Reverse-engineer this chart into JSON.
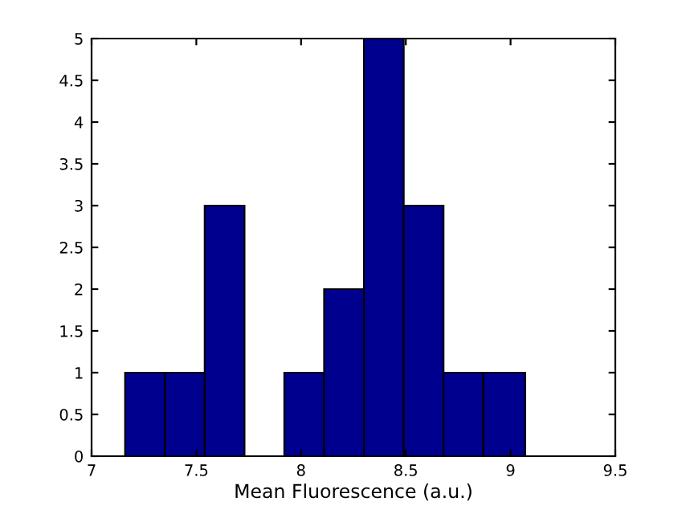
{
  "chart_data": {
    "type": "histogram",
    "xlabel": "Mean Fluorescence (a.u.)",
    "bins": [
      7.16,
      7.35,
      7.54,
      7.73,
      7.92,
      8.11,
      8.3,
      8.49,
      8.68,
      8.87,
      9.07
    ],
    "values": [
      1,
      1,
      3,
      0,
      1,
      2,
      5,
      3,
      1,
      1
    ],
    "color": "#00008f",
    "xlim": [
      7,
      9.5
    ],
    "xticks": [
      7,
      7.5,
      8,
      8.5,
      9,
      9.5
    ],
    "ylim": [
      0,
      5
    ],
    "yticks": [
      0,
      0.5,
      1,
      1.5,
      2,
      2.5,
      3,
      3.5,
      4,
      4.5,
      5
    ],
    "grid": false
  }
}
